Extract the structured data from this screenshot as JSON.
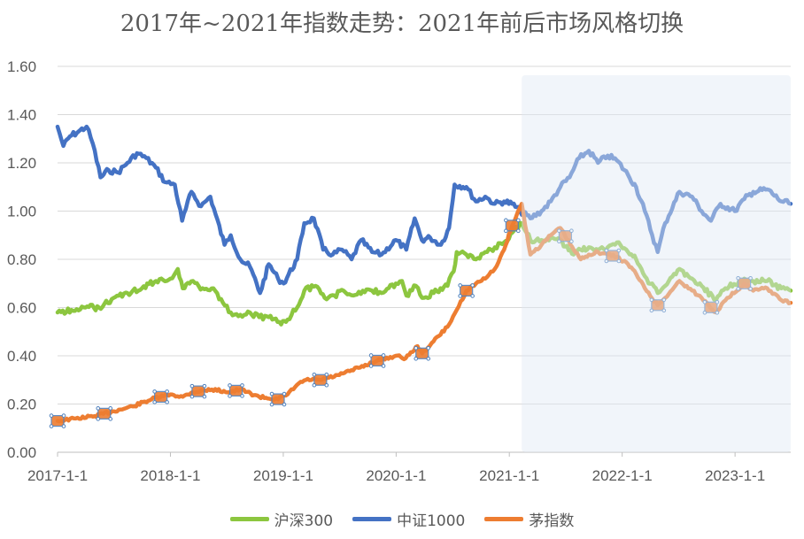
{
  "chart_data": {
    "type": "line",
    "title": "2017年~2021年指数走势：2021年前后市场风格切换",
    "ylim": [
      0,
      1.6
    ],
    "y_ticks": [
      "0.00",
      "0.20",
      "0.40",
      "0.60",
      "0.80",
      "1.00",
      "1.20",
      "1.40",
      "1.60"
    ],
    "x_ticks": [
      "2017-1-1",
      "2018-1-1",
      "2019-1-1",
      "2020-1-1",
      "2021-1-1",
      "2022-1-1",
      "2023-1-1"
    ],
    "x_range": [
      "2017-01-01",
      "2023-06-30"
    ],
    "grid": true,
    "legend_position": "bottom",
    "highlight_region": {
      "from": "2021-02-10",
      "to": "2023-06-30",
      "color": "#dfe8f4"
    },
    "series": [
      {
        "name": "沪深300",
        "color": "#8cc63f",
        "points": [
          [
            "2017-01-01",
            0.58
          ],
          [
            "2017-02-15",
            0.59
          ],
          [
            "2017-04-01",
            0.6
          ],
          [
            "2017-05-15",
            0.6
          ],
          [
            "2017-07-01",
            0.64
          ],
          [
            "2017-08-15",
            0.66
          ],
          [
            "2017-10-01",
            0.68
          ],
          [
            "2017-11-15",
            0.71
          ],
          [
            "2018-01-01",
            0.72
          ],
          [
            "2018-01-25",
            0.76
          ],
          [
            "2018-02-10",
            0.68
          ],
          [
            "2018-03-15",
            0.71
          ],
          [
            "2018-04-15",
            0.68
          ],
          [
            "2018-05-20",
            0.68
          ],
          [
            "2018-06-20",
            0.62
          ],
          [
            "2018-07-15",
            0.58
          ],
          [
            "2018-08-15",
            0.57
          ],
          [
            "2018-09-15",
            0.58
          ],
          [
            "2018-10-15",
            0.56
          ],
          [
            "2018-11-15",
            0.56
          ],
          [
            "2018-12-25",
            0.53
          ],
          [
            "2019-01-15",
            0.55
          ],
          [
            "2019-02-15",
            0.6
          ],
          [
            "2019-03-10",
            0.67
          ],
          [
            "2019-04-15",
            0.69
          ],
          [
            "2019-05-15",
            0.64
          ],
          [
            "2019-06-15",
            0.65
          ],
          [
            "2019-07-15",
            0.67
          ],
          [
            "2019-08-15",
            0.65
          ],
          [
            "2019-09-15",
            0.67
          ],
          [
            "2019-10-15",
            0.67
          ],
          [
            "2019-11-15",
            0.66
          ],
          [
            "2019-12-31",
            0.7
          ],
          [
            "2020-01-20",
            0.71
          ],
          [
            "2020-02-03",
            0.65
          ],
          [
            "2020-03-05",
            0.69
          ],
          [
            "2020-03-25",
            0.64
          ],
          [
            "2020-05-01",
            0.66
          ],
          [
            "2020-06-15",
            0.69
          ],
          [
            "2020-07-05",
            0.75
          ],
          [
            "2020-07-15",
            0.83
          ],
          [
            "2020-08-15",
            0.82
          ],
          [
            "2020-09-15",
            0.8
          ],
          [
            "2020-10-15",
            0.83
          ],
          [
            "2020-11-15",
            0.85
          ],
          [
            "2020-12-15",
            0.87
          ],
          [
            "2021-01-10",
            0.91
          ],
          [
            "2021-02-10",
            0.95
          ],
          [
            "2021-03-10",
            0.88
          ],
          [
            "2021-04-15",
            0.88
          ],
          [
            "2021-05-15",
            0.89
          ],
          [
            "2021-06-15",
            0.88
          ],
          [
            "2021-07-28",
            0.82
          ],
          [
            "2021-08-20",
            0.84
          ],
          [
            "2021-09-15",
            0.85
          ],
          [
            "2021-10-15",
            0.84
          ],
          [
            "2021-11-15",
            0.85
          ],
          [
            "2021-12-15",
            0.87
          ],
          [
            "2022-01-20",
            0.83
          ],
          [
            "2022-02-15",
            0.8
          ],
          [
            "2022-03-15",
            0.73
          ],
          [
            "2022-04-26",
            0.66
          ],
          [
            "2022-05-20",
            0.69
          ],
          [
            "2022-07-05",
            0.76
          ],
          [
            "2022-08-15",
            0.72
          ],
          [
            "2022-09-15",
            0.69
          ],
          [
            "2022-10-31",
            0.63
          ],
          [
            "2022-12-01",
            0.68
          ],
          [
            "2023-01-31",
            0.72
          ],
          [
            "2023-03-01",
            0.71
          ],
          [
            "2023-04-15",
            0.71
          ],
          [
            "2023-05-31",
            0.68
          ],
          [
            "2023-06-30",
            0.67
          ]
        ]
      },
      {
        "name": "中证1000",
        "color": "#4472c4",
        "points": [
          [
            "2017-01-01",
            1.35
          ],
          [
            "2017-01-20",
            1.27
          ],
          [
            "2017-02-10",
            1.31
          ],
          [
            "2017-03-10",
            1.33
          ],
          [
            "2017-04-05",
            1.35
          ],
          [
            "2017-04-25",
            1.28
          ],
          [
            "2017-05-20",
            1.14
          ],
          [
            "2017-06-15",
            1.17
          ],
          [
            "2017-07-15",
            1.16
          ],
          [
            "2017-08-15",
            1.2
          ],
          [
            "2017-09-15",
            1.24
          ],
          [
            "2017-10-15",
            1.22
          ],
          [
            "2017-11-15",
            1.18
          ],
          [
            "2017-12-15",
            1.12
          ],
          [
            "2018-01-15",
            1.11
          ],
          [
            "2018-02-08",
            0.96
          ],
          [
            "2018-03-10",
            1.08
          ],
          [
            "2018-04-10",
            1.02
          ],
          [
            "2018-05-10",
            1.06
          ],
          [
            "2018-06-25",
            0.86
          ],
          [
            "2018-07-15",
            0.9
          ],
          [
            "2018-08-15",
            0.8
          ],
          [
            "2018-09-15",
            0.77
          ],
          [
            "2018-10-18",
            0.66
          ],
          [
            "2018-11-15",
            0.78
          ],
          [
            "2018-12-15",
            0.72
          ],
          [
            "2019-01-02",
            0.7
          ],
          [
            "2019-02-15",
            0.8
          ],
          [
            "2019-03-10",
            0.95
          ],
          [
            "2019-04-10",
            0.97
          ],
          [
            "2019-05-10",
            0.84
          ],
          [
            "2019-06-10",
            0.82
          ],
          [
            "2019-07-10",
            0.84
          ],
          [
            "2019-08-10",
            0.8
          ],
          [
            "2019-09-10",
            0.88
          ],
          [
            "2019-10-15",
            0.83
          ],
          [
            "2019-11-15",
            0.82
          ],
          [
            "2019-12-31",
            0.88
          ],
          [
            "2020-02-03",
            0.84
          ],
          [
            "2020-03-01",
            0.97
          ],
          [
            "2020-03-24",
            0.88
          ],
          [
            "2020-04-20",
            0.89
          ],
          [
            "2020-05-25",
            0.86
          ],
          [
            "2020-06-20",
            0.93
          ],
          [
            "2020-07-08",
            1.11
          ],
          [
            "2020-08-15",
            1.1
          ],
          [
            "2020-09-15",
            1.04
          ],
          [
            "2020-10-15",
            1.06
          ],
          [
            "2020-11-15",
            1.03
          ],
          [
            "2020-12-15",
            1.04
          ],
          [
            "2021-01-10",
            1.03
          ],
          [
            "2021-02-05",
            1.0
          ],
          [
            "2021-03-10",
            0.97
          ],
          [
            "2021-04-15",
            1.0
          ],
          [
            "2021-05-15",
            1.04
          ],
          [
            "2021-06-15",
            1.1
          ],
          [
            "2021-07-15",
            1.14
          ],
          [
            "2021-08-15",
            1.22
          ],
          [
            "2021-09-15",
            1.25
          ],
          [
            "2021-10-15",
            1.2
          ],
          [
            "2021-11-15",
            1.23
          ],
          [
            "2021-12-15",
            1.21
          ],
          [
            "2022-01-20",
            1.15
          ],
          [
            "2022-02-15",
            1.1
          ],
          [
            "2022-03-15",
            1.0
          ],
          [
            "2022-04-26",
            0.83
          ],
          [
            "2022-05-20",
            0.95
          ],
          [
            "2022-07-05",
            1.08
          ],
          [
            "2022-08-15",
            1.06
          ],
          [
            "2022-09-15",
            1.0
          ],
          [
            "2022-10-15",
            0.96
          ],
          [
            "2022-11-15",
            1.03
          ],
          [
            "2022-12-31",
            1.0
          ],
          [
            "2023-01-31",
            1.05
          ],
          [
            "2023-03-01",
            1.08
          ],
          [
            "2023-04-15",
            1.09
          ],
          [
            "2023-05-31",
            1.04
          ],
          [
            "2023-06-30",
            1.03
          ]
        ]
      },
      {
        "name": "茅指数",
        "color": "#ed7d31",
        "points": [
          [
            "2017-01-01",
            0.13
          ],
          [
            "2017-03-01",
            0.14
          ],
          [
            "2017-05-01",
            0.15
          ],
          [
            "2017-07-01",
            0.17
          ],
          [
            "2017-09-01",
            0.19
          ],
          [
            "2017-11-01",
            0.22
          ],
          [
            "2018-01-01",
            0.24
          ],
          [
            "2018-02-10",
            0.23
          ],
          [
            "2018-03-15",
            0.25
          ],
          [
            "2018-05-15",
            0.26
          ],
          [
            "2018-07-15",
            0.25
          ],
          [
            "2018-08-15",
            0.26
          ],
          [
            "2018-10-15",
            0.23
          ],
          [
            "2018-12-15",
            0.22
          ],
          [
            "2019-01-15",
            0.24
          ],
          [
            "2019-02-15",
            0.28
          ],
          [
            "2019-03-15",
            0.3
          ],
          [
            "2019-05-01",
            0.3
          ],
          [
            "2019-07-01",
            0.32
          ],
          [
            "2019-09-01",
            0.35
          ],
          [
            "2019-11-01",
            0.38
          ],
          [
            "2019-12-31",
            0.4
          ],
          [
            "2020-02-01",
            0.39
          ],
          [
            "2020-03-10",
            0.44
          ],
          [
            "2020-03-25",
            0.41
          ],
          [
            "2020-05-01",
            0.46
          ],
          [
            "2020-06-15",
            0.52
          ],
          [
            "2020-07-15",
            0.59
          ],
          [
            "2020-08-15",
            0.67
          ],
          [
            "2020-09-15",
            0.7
          ],
          [
            "2020-10-15",
            0.72
          ],
          [
            "2020-11-15",
            0.76
          ],
          [
            "2020-12-15",
            0.84
          ],
          [
            "2021-01-10",
            0.94
          ],
          [
            "2021-02-10",
            1.03
          ],
          [
            "2021-03-10",
            0.82
          ],
          [
            "2021-04-15",
            0.86
          ],
          [
            "2021-05-15",
            0.9
          ],
          [
            "2021-06-15",
            0.93
          ],
          [
            "2021-07-28",
            0.84
          ],
          [
            "2021-08-20",
            0.8
          ],
          [
            "2021-09-15",
            0.82
          ],
          [
            "2021-10-15",
            0.83
          ],
          [
            "2021-11-15",
            0.82
          ],
          [
            "2021-12-15",
            0.81
          ],
          [
            "2022-01-20",
            0.78
          ],
          [
            "2022-02-15",
            0.74
          ],
          [
            "2022-03-15",
            0.68
          ],
          [
            "2022-04-26",
            0.61
          ],
          [
            "2022-05-20",
            0.64
          ],
          [
            "2022-07-05",
            0.71
          ],
          [
            "2022-08-15",
            0.67
          ],
          [
            "2022-09-15",
            0.64
          ],
          [
            "2022-10-31",
            0.58
          ],
          [
            "2022-12-01",
            0.63
          ],
          [
            "2023-01-31",
            0.7
          ],
          [
            "2023-03-01",
            0.67
          ],
          [
            "2023-04-15",
            0.68
          ],
          [
            "2023-05-31",
            0.63
          ],
          [
            "2023-06-30",
            0.62
          ]
        ]
      }
    ],
    "markers": {
      "series": "茅指数",
      "dates": [
        "2017-01-01",
        "2017-06-01",
        "2017-12-01",
        "2018-04-01",
        "2018-08-01",
        "2018-12-15",
        "2019-05-01",
        "2019-11-01",
        "2020-03-25",
        "2020-08-15",
        "2021-01-10",
        "2021-07-01",
        "2021-12-01",
        "2022-04-26",
        "2022-10-15",
        "2023-01-31"
      ]
    }
  },
  "legend": {
    "items": [
      {
        "label": "沪深300",
        "color": "#8cc63f"
      },
      {
        "label": "中证1000",
        "color": "#4472c4"
      },
      {
        "label": "茅指数",
        "color": "#ed7d31"
      }
    ]
  }
}
